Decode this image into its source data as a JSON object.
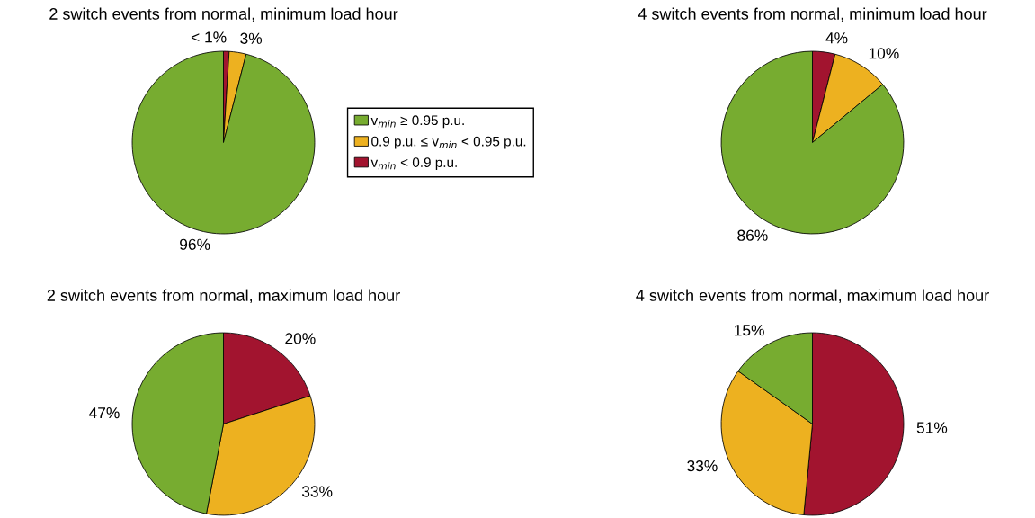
{
  "chart_data": [
    {
      "type": "pie",
      "title": "2 switch events from normal, minimum load hour",
      "categories": [
        "v$_{min}$ < 0.9 p.u.",
        "0.9 p.u. ≤ v$_{min}$ < 0.95 p.u.",
        "v$_{min}$ ≥ 0.95 p.u."
      ],
      "values": [
        1,
        3,
        96
      ],
      "value_labels": [
        "< 1%",
        "3%",
        "96%"
      ],
      "colors": [
        "#a2142f",
        "#edb120",
        "#77ac30"
      ],
      "legend": "right"
    },
    {
      "type": "pie",
      "title": "4 switch events from normal, minimum load hour",
      "categories": [
        null,
        null,
        null
      ],
      "values": [
        4,
        10,
        86
      ],
      "value_labels": [
        "4%",
        "10%",
        "86%"
      ],
      "colors": [
        "#a2142f",
        "#edb120",
        "#77ac30"
      ]
    },
    {
      "type": "pie",
      "title": "2 switch events from normal, maximum load hour",
      "categories": [
        null,
        null,
        null
      ],
      "values": [
        20,
        33,
        47
      ],
      "value_labels": [
        "20%",
        "33%",
        "47%"
      ],
      "colors": [
        "#a2142f",
        "#edb120",
        "#77ac30"
      ]
    },
    {
      "type": "pie",
      "title": "4 switch events from normal, maximum load hour",
      "categories": [
        null,
        null,
        null
      ],
      "values": [
        51,
        33,
        15
      ],
      "value_labels": [
        "51%",
        "33%",
        "15%"
      ],
      "colors": [
        "#a2142f",
        "#edb120",
        "#77ac30"
      ]
    }
  ]
}
